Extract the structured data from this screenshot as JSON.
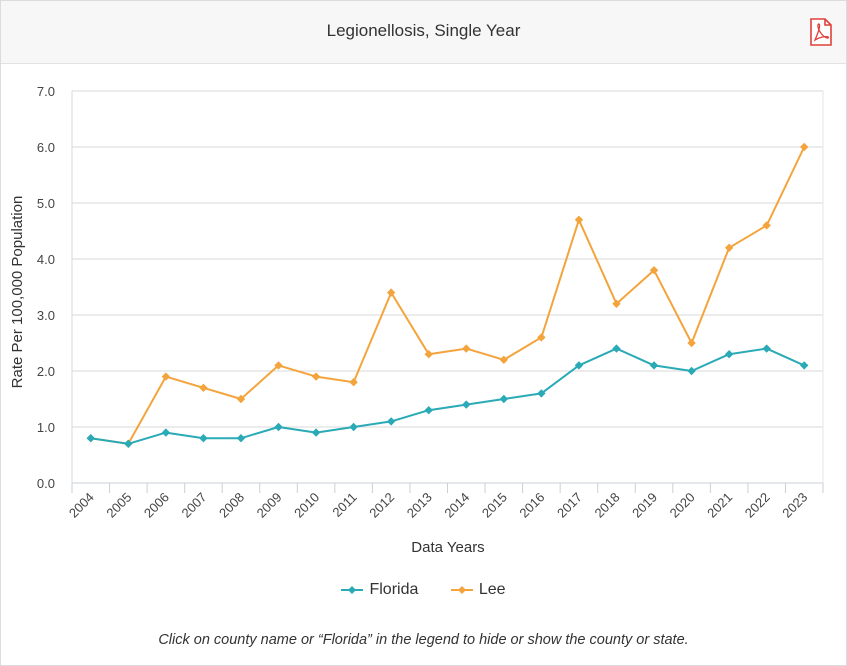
{
  "header": {
    "title": "Legionellosis, Single Year",
    "pdf_icon": "pdf-icon"
  },
  "chart_data": {
    "type": "line",
    "title": "",
    "xlabel": "Data Years",
    "ylabel": "Rate Per 100,000 Population",
    "ylim": [
      0,
      7
    ],
    "yticks": [
      "0.0",
      "1.0",
      "2.0",
      "3.0",
      "4.0",
      "5.0",
      "6.0",
      "7.0"
    ],
    "grid": true,
    "legend_position": "bottom",
    "x": [
      "2004",
      "2005",
      "2006",
      "2007",
      "2008",
      "2009",
      "2010",
      "2011",
      "2012",
      "2013",
      "2014",
      "2015",
      "2016",
      "2017",
      "2018",
      "2019",
      "2020",
      "2021",
      "2022",
      "2023"
    ],
    "series": [
      {
        "name": "Florida",
        "color": "#2aaab6",
        "values": [
          0.8,
          0.7,
          0.9,
          0.8,
          0.8,
          1.0,
          0.9,
          1.0,
          1.1,
          1.3,
          1.4,
          1.5,
          1.6,
          2.1,
          2.4,
          2.1,
          2.0,
          2.3,
          2.4,
          2.1
        ]
      },
      {
        "name": "Lee",
        "color": "#f4a43c",
        "values": [
          0.8,
          0.7,
          1.9,
          1.7,
          1.5,
          2.1,
          1.9,
          1.8,
          3.4,
          2.3,
          2.4,
          2.2,
          2.6,
          4.7,
          3.2,
          3.8,
          2.5,
          4.2,
          4.6,
          6.0
        ]
      }
    ]
  },
  "footnote": "Click on county name or “Florida” in the legend to hide or show the county or state."
}
